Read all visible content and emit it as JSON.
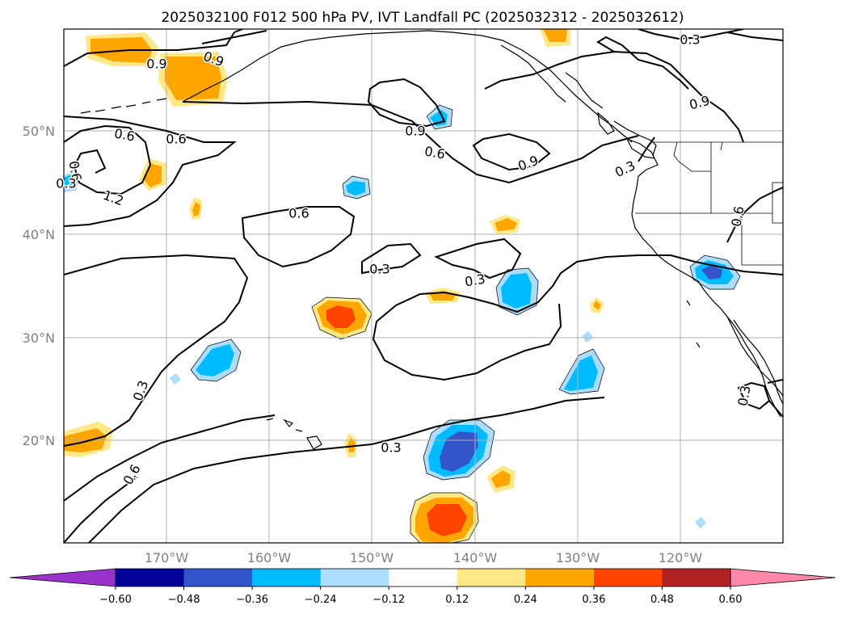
{
  "title": "2025032100 F012 500 hPa PV, IVT Landfall PC (2025032312 - 2025032612)",
  "lat_labels": [
    "50°N",
    "40°N",
    "30°N",
    "20°N"
  ],
  "lon_labels": [
    "170°W",
    "160°W",
    "150°W",
    "140°W",
    "130°W",
    "120°W"
  ],
  "colorbar": {
    "ticks": [
      "−0.60",
      "−0.48",
      "−0.36",
      "−0.24",
      "−0.12",
      "0.12",
      "0.24",
      "0.36",
      "0.48",
      "0.60"
    ],
    "colors": [
      "#9933cc",
      "#000099",
      "#3355cc",
      "#00bbff",
      "#aaddff",
      "#ffffff",
      "#ffe888",
      "#ffa500",
      "#ff4400",
      "#b22222",
      "#ff88aa"
    ]
  },
  "contour_labels": [
    "0.9",
    "0.9",
    "0.6",
    "0.9",
    "0.6",
    "0.6",
    "0.9",
    "0.6",
    "0.9",
    "0.3",
    "0.3",
    "1.2",
    "0.6",
    "0.6",
    "0.3",
    "0.3",
    "0.6",
    "0.3",
    "0.3",
    "0.3",
    "0.3"
  ],
  "colors": {
    "grid": "#b0b0b0",
    "contour": "#000000",
    "axis_label": "#808080"
  }
}
